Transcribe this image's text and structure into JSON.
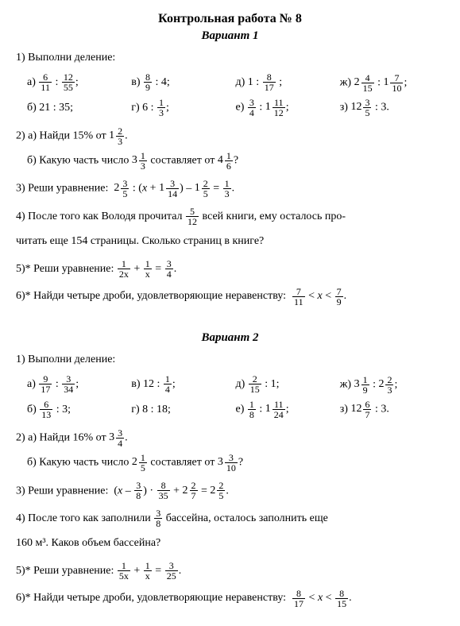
{
  "title": "Контрольная работа № 8",
  "v1": {
    "name": "Вариант 1",
    "t1": "1) Выполни деление:",
    "a": "а)",
    "b": "б)",
    "v": "в)",
    "g": "г)",
    "d": "д)",
    "e": "е)",
    "zh": "ж)",
    "z": "з)",
    "r1b": "21 : 35;",
    "r1g": "г) 6 :",
    "r1v": "в)",
    "t2a": "2) а) Найди 15% от",
    "t2b": "б) Какую часть число",
    "t2b2": "составляет от",
    "t3": "3) Реши уравнение:",
    "t4a": "4) После того как Володя прочитал",
    "t4b": "всей книги, ему осталось про-",
    "t4c": "читать еще 154 страницы. Сколько страниц в книге?",
    "t5": "5)* Реши уравнение:",
    "t6": "6)* Найди четыре дроби, удовлетворяющие неравенству:"
  },
  "v2": {
    "name": "Вариант 2",
    "t1": "1) Выполни деление:",
    "a": "а)",
    "b": "б)",
    "v": "в)",
    "g": "г)",
    "d": "д)",
    "e": "е)",
    "zh": "ж)",
    "z": "з)",
    "r1g": "г) 8 : 18;",
    "t2a": "2) а) Найди 16% от",
    "t2b": "б) Какую часть число",
    "t2b2": "составляет от",
    "t3": "3) Реши уравнение:",
    "t4a": "4) После того как заполнили",
    "t4b": "бассейна, осталось заполнить еще",
    "t4c": "160 м³. Каков объем бассейна?",
    "t5": "5)* Реши уравнение:",
    "t6": "6)* Найди четыре дроби, удовлетворяющие неравенству:"
  },
  "fracs": {
    "v1": {
      "a1": {
        "n": "6",
        "d": "11"
      },
      "a2": {
        "n": "12",
        "d": "55"
      },
      "v1": {
        "n": "8",
        "d": "9"
      },
      "d1": {
        "n": "8",
        "d": "17"
      },
      "zh1": {
        "w": "2",
        "n": "4",
        "d": "15"
      },
      "zh2": {
        "w": "1",
        "n": "7",
        "d": "10"
      },
      "g1": {
        "n": "1",
        "d": "3"
      },
      "e1": {
        "n": "3",
        "d": "4"
      },
      "e2": {
        "w": "1",
        "n": "11",
        "d": "12"
      },
      "z1": {
        "w": "12",
        "n": "3",
        "d": "5"
      },
      "p2a": {
        "w": "1",
        "n": "2",
        "d": "3"
      },
      "p2b1": {
        "w": "3",
        "n": "1",
        "d": "3"
      },
      "p2b2": {
        "w": "4",
        "n": "1",
        "d": "6"
      },
      "p3a": {
        "w": "2",
        "n": "3",
        "d": "5"
      },
      "p3b": {
        "w": "1",
        "n": "3",
        "d": "14"
      },
      "p3c": {
        "w": "1",
        "n": "2",
        "d": "5"
      },
      "p3d": {
        "n": "1",
        "d": "3"
      },
      "p4": {
        "n": "5",
        "d": "12"
      },
      "p5a": {
        "n": "1",
        "d": "2x"
      },
      "p5b": {
        "n": "1",
        "d": "x"
      },
      "p5c": {
        "n": "3",
        "d": "4"
      },
      "p6a": {
        "n": "7",
        "d": "11"
      },
      "p6b": {
        "n": "7",
        "d": "9"
      }
    },
    "v2": {
      "a1": {
        "n": "9",
        "d": "17"
      },
      "a2": {
        "n": "3",
        "d": "34"
      },
      "v1": {
        "n": "1",
        "d": "4"
      },
      "d1": {
        "n": "2",
        "d": "15"
      },
      "zh1": {
        "w": "3",
        "n": "1",
        "d": "9"
      },
      "zh2": {
        "w": "2",
        "n": "2",
        "d": "3"
      },
      "b1": {
        "n": "6",
        "d": "13"
      },
      "e1": {
        "n": "1",
        "d": "8"
      },
      "e2": {
        "w": "1",
        "n": "11",
        "d": "24"
      },
      "z1": {
        "w": "12",
        "n": "6",
        "d": "7"
      },
      "p2a": {
        "w": "3",
        "n": "3",
        "d": "4"
      },
      "p2b1": {
        "w": "2",
        "n": "1",
        "d": "5"
      },
      "p2b2": {
        "w": "3",
        "n": "3",
        "d": "10"
      },
      "p3a": {
        "n": "3",
        "d": "8"
      },
      "p3b": {
        "n": "8",
        "d": "35"
      },
      "p3c": {
        "w": "2",
        "n": "2",
        "d": "7"
      },
      "p3d": {
        "w": "2",
        "n": "2",
        "d": "5"
      },
      "p4": {
        "n": "3",
        "d": "8"
      },
      "p5a": {
        "n": "1",
        "d": "5x"
      },
      "p5b": {
        "n": "1",
        "d": "x"
      },
      "p5c": {
        "n": "3",
        "d": "25"
      },
      "p6a": {
        "n": "8",
        "d": "17"
      },
      "p6b": {
        "n": "8",
        "d": "15"
      }
    }
  }
}
